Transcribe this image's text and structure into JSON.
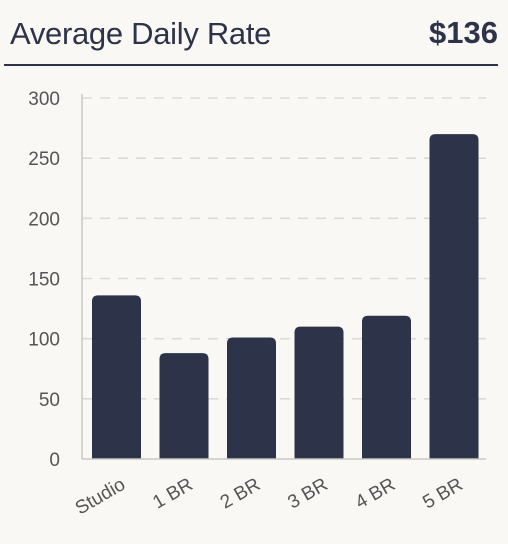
{
  "header": {
    "title": "Average Daily Rate",
    "value": "$136"
  },
  "colors": {
    "bar": "#2d3349",
    "grid": "#dcdad6",
    "axis": "#c9c7c2",
    "tick_text": "#555555",
    "background": "#faf8f4"
  },
  "chart_data": {
    "type": "bar",
    "categories": [
      "Studio",
      "1 BR",
      "2 BR",
      "3 BR",
      "4 BR",
      "5 BR"
    ],
    "values": [
      136,
      88,
      101,
      110,
      119,
      270
    ],
    "ylim": [
      0,
      300
    ],
    "yticks": [
      0,
      50,
      100,
      150,
      200,
      250,
      300
    ],
    "grid": true,
    "grid_style": "dashed",
    "title": "",
    "xlabel": "",
    "ylabel": ""
  }
}
